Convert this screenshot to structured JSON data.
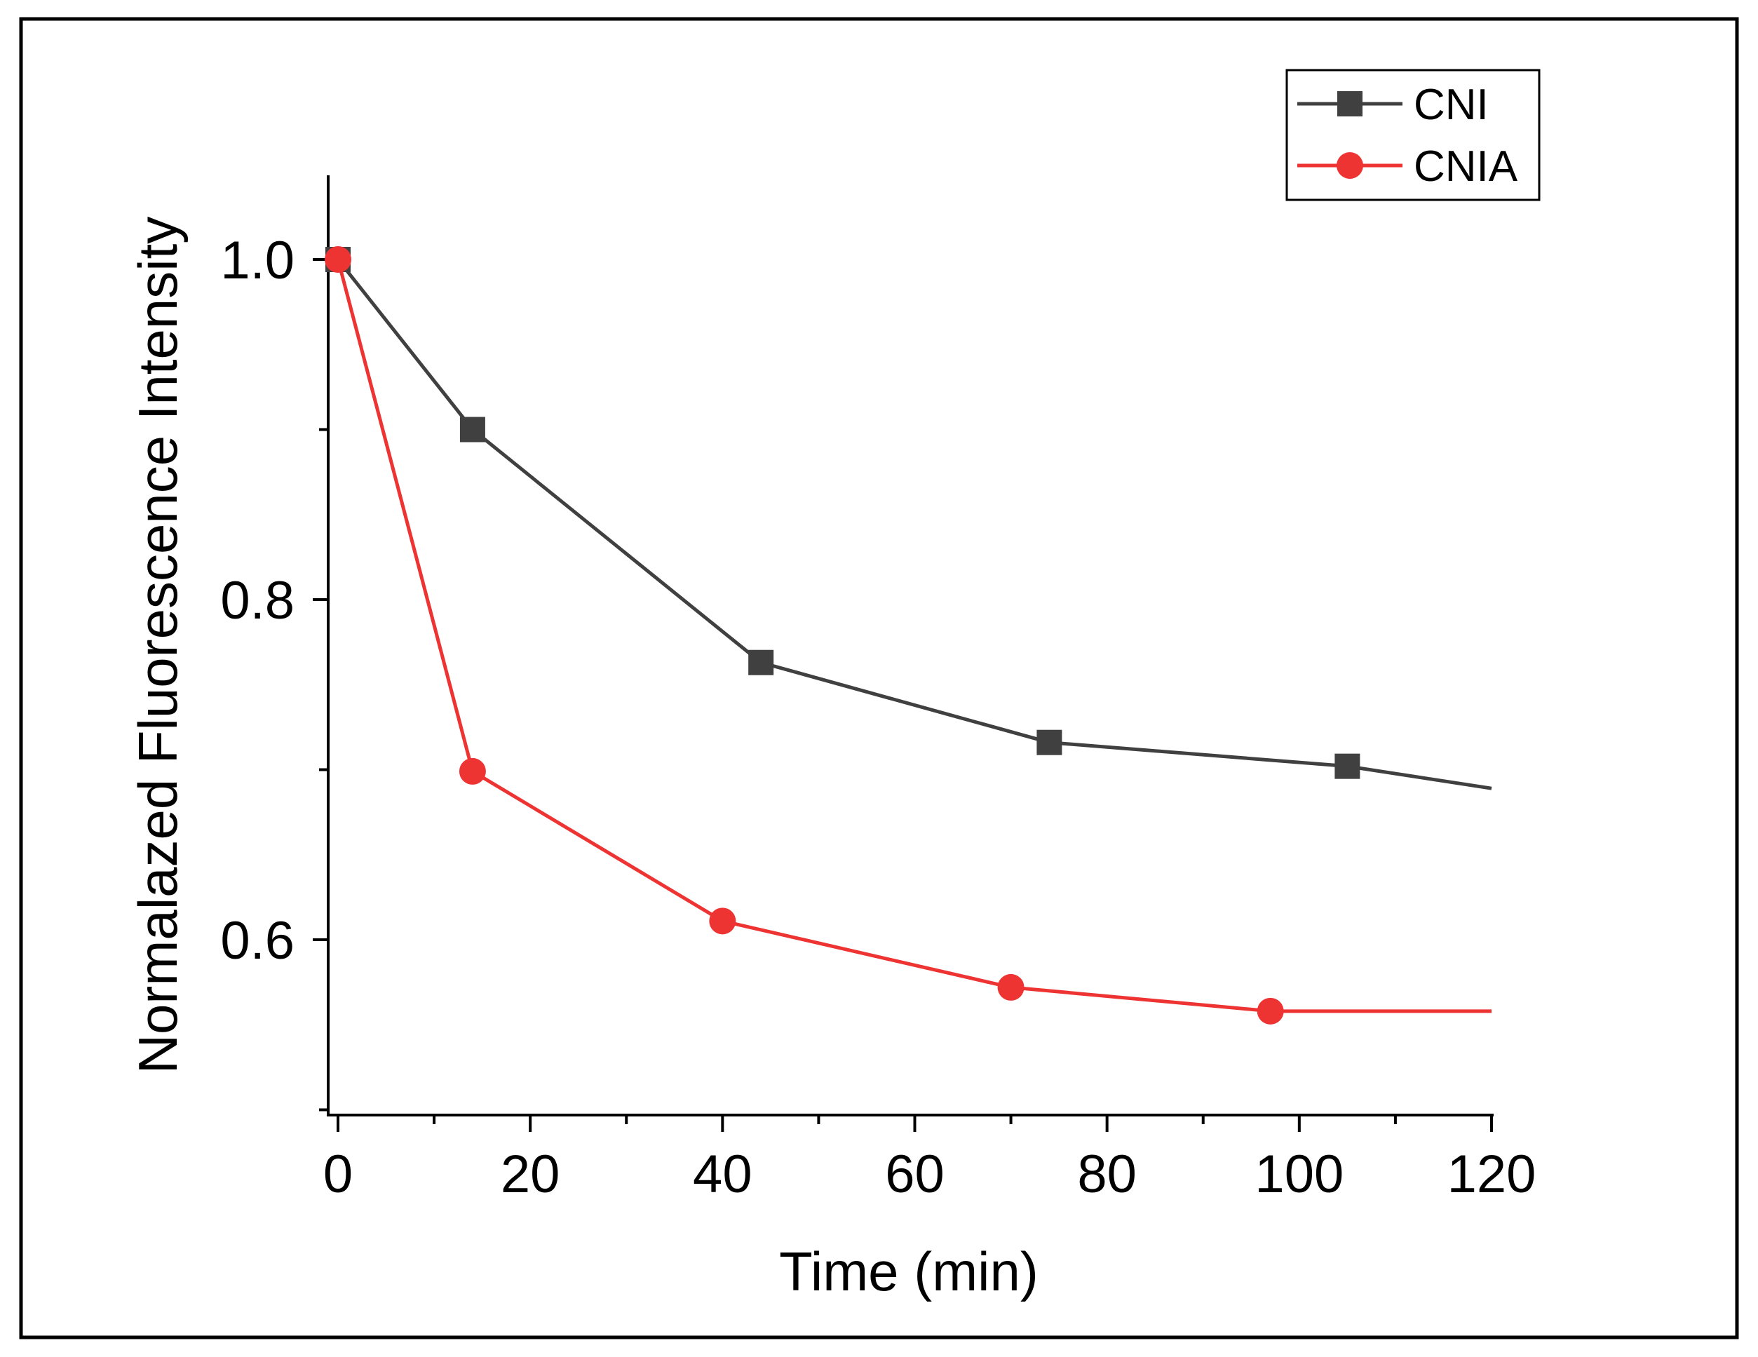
{
  "chart_data": {
    "type": "line",
    "title": "",
    "xlabel": "Time (min)",
    "ylabel": "Normalazed Fluorescence Intensity",
    "xlim": [
      -1,
      120
    ],
    "ylim": [
      0.5,
      1.05
    ],
    "x_ticks": [
      0,
      20,
      40,
      60,
      80,
      100,
      120
    ],
    "x_tick_labels": [
      "0",
      "20",
      "40",
      "60",
      "80",
      "100",
      "120"
    ],
    "y_ticks": [
      0.6,
      0.8,
      1.0
    ],
    "y_tick_labels": [
      "0.6",
      "0.8",
      "1.0"
    ],
    "grid": false,
    "legend_position": "top-right",
    "series": [
      {
        "name": "CNI",
        "color": "#404040",
        "marker": "square",
        "x": [
          0,
          14,
          44,
          74,
          105
        ],
        "y": [
          1.0,
          0.9,
          0.763,
          0.716,
          0.702
        ],
        "line_end": {
          "x": 120,
          "y": 0.689
        }
      },
      {
        "name": "CNIA",
        "color": "#ee3333",
        "marker": "circle",
        "x": [
          0,
          14,
          40,
          70,
          97
        ],
        "y": [
          1.0,
          0.699,
          0.611,
          0.572,
          0.558
        ],
        "line_end": {
          "x": 120,
          "y": 0.558
        }
      }
    ]
  }
}
